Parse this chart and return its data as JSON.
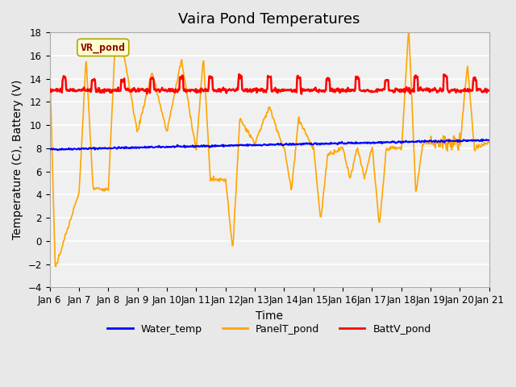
{
  "title": "Vaira Pond Temperatures",
  "xlabel": "Time",
  "ylabel": "Temperature (C), Battery (V)",
  "ylim": [
    -4,
    18
  ],
  "yticks": [
    -4,
    -2,
    0,
    2,
    4,
    6,
    8,
    10,
    12,
    14,
    16,
    18
  ],
  "xlim": [
    0,
    15
  ],
  "xtick_labels": [
    "Jan 6",
    "Jan 7",
    "Jan 8",
    "Jan 9",
    "Jan 10",
    "Jan 11",
    "Jan 12",
    "Jan 13",
    "Jan 14",
    "Jan 15",
    "Jan 16",
    "Jan 17",
    "Jan 18",
    "Jan 19",
    "Jan 20",
    "Jan 21"
  ],
  "annotation_text": "VR_pond",
  "annotation_color": "#8B0000",
  "annotation_bg": "#FFFFCC",
  "bg_color": "#E8E8E8",
  "plot_bg_color": "#F0F0F0",
  "water_temp_color": "#0000FF",
  "panel_temp_color": "#FFA500",
  "batt_color": "#FF0000",
  "water_temp_lw": 1.5,
  "panel_temp_lw": 1.2,
  "batt_lw": 1.8,
  "legend_labels": [
    "Water_temp",
    "PanelT_pond",
    "BattV_pond"
  ],
  "title_fontsize": 13,
  "axis_label_fontsize": 10,
  "tick_fontsize": 8.5
}
